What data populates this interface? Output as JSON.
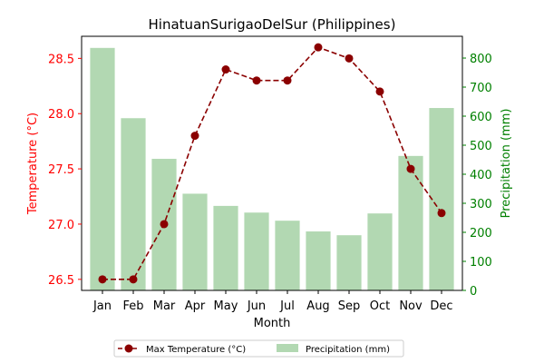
{
  "chart_data": {
    "type": "bar+line",
    "title": "HinatuanSurigaoDelSur (Philippines)",
    "xlabel": "Month",
    "categories": [
      "Jan",
      "Feb",
      "Mar",
      "Apr",
      "May",
      "Jun",
      "Jul",
      "Aug",
      "Sep",
      "Oct",
      "Nov",
      "Dec"
    ],
    "temperature": {
      "name": "Max Temperature (°C)",
      "axis_label": "Temperature (°C)",
      "values": [
        26.5,
        26.5,
        27.0,
        27.8,
        28.4,
        28.3,
        28.3,
        28.6,
        28.5,
        28.2,
        27.5,
        27.1
      ],
      "ylim": [
        26.4,
        28.7
      ],
      "ticks": [
        "26.5",
        "27.0",
        "27.5",
        "28.0",
        "28.5"
      ],
      "color": "#8b0000",
      "axis_color": "#ff0000"
    },
    "precipitation": {
      "name": "Precipitation (mm)",
      "axis_label": "Precipitation (mm)",
      "values": [
        835,
        593,
        453,
        333,
        291,
        268,
        240,
        203,
        190,
        265,
        463,
        628
      ],
      "ylim": [
        0,
        875
      ],
      "ticks": [
        "0",
        "100",
        "200",
        "300",
        "400",
        "500",
        "600",
        "700",
        "800"
      ],
      "color": "#b2d8b2",
      "axis_color": "#008000"
    },
    "legend_position": "bottom-center",
    "grid": false
  }
}
